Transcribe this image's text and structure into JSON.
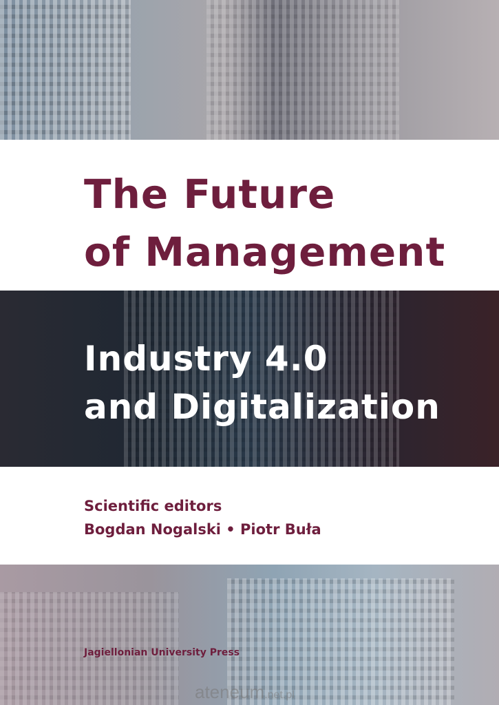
{
  "cover": {
    "title_line1": "The Future",
    "title_line2": "of Management",
    "subtitle_line1": "Industry 4.0",
    "subtitle_line2": "and Digitalization",
    "editors_label": "Scientific editors",
    "editors_names": "Bogdan Nogalski • Piotr Buła",
    "publisher": "Jagiellonian University Press",
    "watermark_main": "ateneum",
    "watermark_suffix": ".net.pl"
  },
  "colors": {
    "title": "#6e1e3d",
    "subtitle": "#ffffff"
  }
}
